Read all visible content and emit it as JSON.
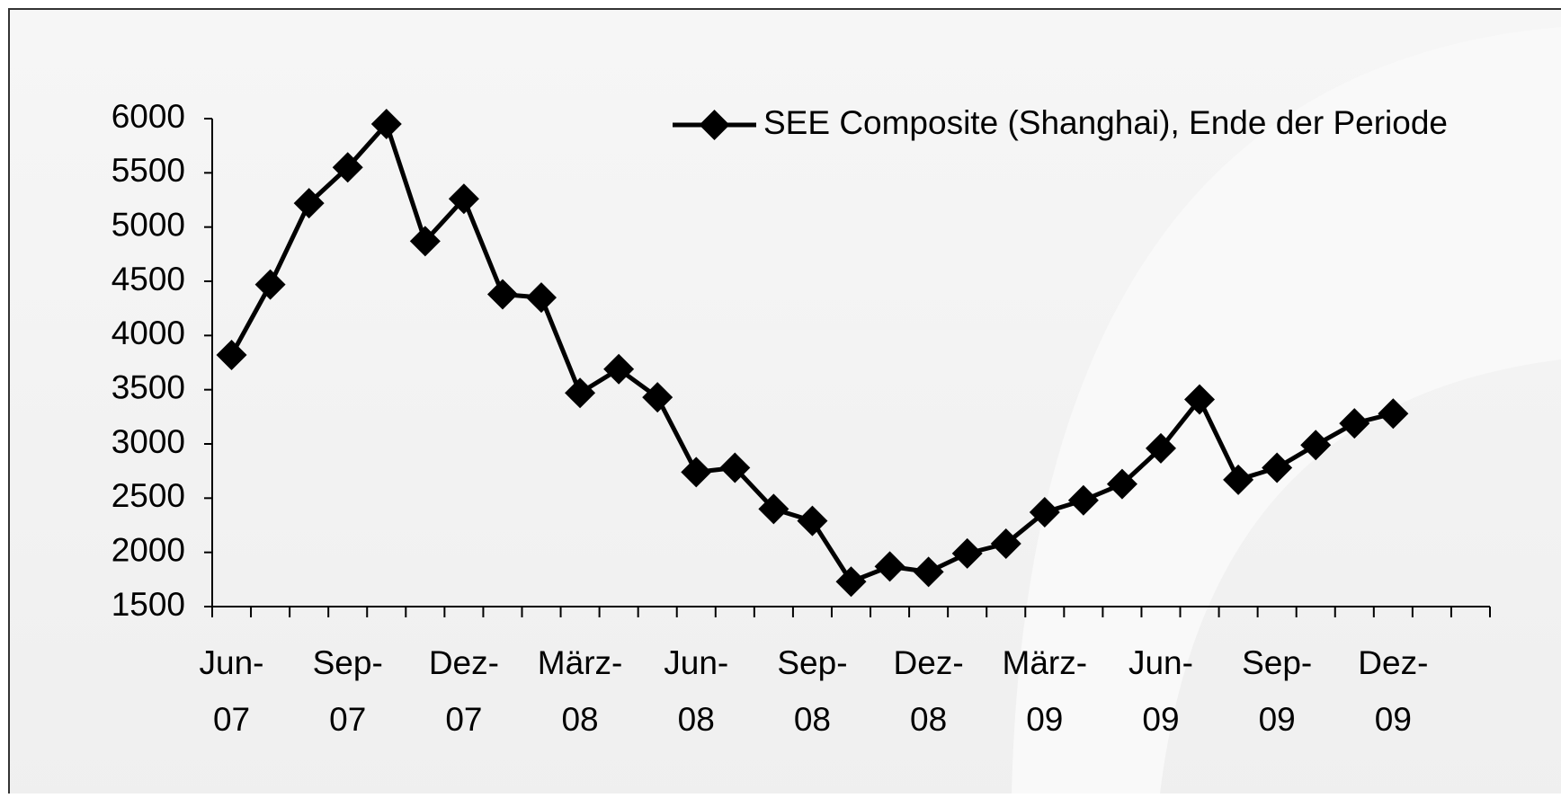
{
  "chart_data": {
    "type": "line",
    "categories": [
      "Jun-07",
      null,
      null,
      "Sep-07",
      null,
      null,
      "Dez-07",
      null,
      null,
      "März-08",
      null,
      null,
      "Jun-08",
      null,
      null,
      "Sep-08",
      null,
      null,
      "Dez-08",
      null,
      null,
      "März-09",
      null,
      null,
      "Jun-09",
      null,
      null,
      "Sep-09",
      null,
      null,
      "Dez-09",
      null,
      null
    ],
    "series": [
      {
        "name": "SEE Composite (Shanghai), Ende der Periode",
        "color": "#000000",
        "values": [
          3820,
          4470,
          5220,
          5550,
          5950,
          4870,
          5260,
          4380,
          4350,
          3470,
          3690,
          3430,
          2740,
          2780,
          2400,
          2290,
          1730,
          1870,
          1820,
          1990,
          2080,
          2370,
          2480,
          2630,
          2960,
          3410,
          2670,
          2780,
          2990,
          3190,
          3280,
          null,
          null
        ]
      }
    ],
    "ylim": [
      1500,
      6000
    ],
    "yticks": [
      1500,
      2000,
      2500,
      3000,
      3500,
      4000,
      4500,
      5000,
      5500,
      6000
    ],
    "legend": "top-right"
  }
}
